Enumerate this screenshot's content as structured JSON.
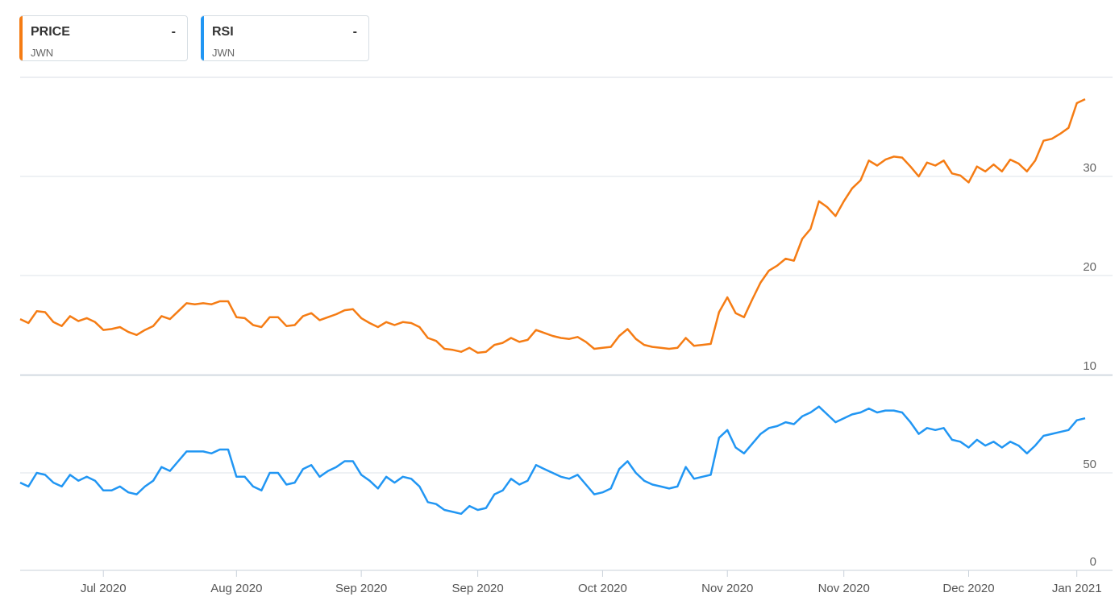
{
  "legend": [
    {
      "name": "PRICE",
      "value": "-",
      "symbol": "JWN",
      "color": "#f57c14"
    },
    {
      "name": "RSI",
      "value": "-",
      "symbol": "JWN",
      "color": "#2196f3"
    }
  ],
  "chart_data": [
    {
      "type": "line",
      "panel": "price",
      "title": "",
      "ylim": [
        10,
        40
      ],
      "y_ticks": [
        "10",
        "20",
        "30"
      ],
      "grid": true,
      "series": [
        {
          "name": "PRICE",
          "color": "#f57c14",
          "values": [
            15.6,
            15.2,
            16.4,
            16.3,
            15.3,
            14.9,
            15.9,
            15.4,
            15.7,
            15.3,
            14.5,
            14.6,
            14.8,
            14.3,
            14.0,
            14.5,
            14.9,
            15.9,
            15.6,
            16.4,
            17.2,
            17.1,
            17.2,
            17.1,
            17.4,
            17.4,
            15.8,
            15.7,
            15.0,
            14.8,
            15.8,
            15.8,
            14.9,
            15.0,
            15.9,
            16.2,
            15.5,
            15.8,
            16.1,
            16.5,
            16.6,
            15.7,
            15.2,
            14.8,
            15.3,
            15.0,
            15.3,
            15.2,
            14.8,
            13.7,
            13.4,
            12.6,
            12.5,
            12.3,
            12.7,
            12.2,
            12.3,
            13.0,
            13.2,
            13.7,
            13.3,
            13.5,
            14.5,
            14.2,
            13.9,
            13.7,
            13.6,
            13.8,
            13.3,
            12.6,
            12.7,
            12.8,
            13.9,
            14.6,
            13.6,
            13.0,
            12.8,
            12.7,
            12.6,
            12.7,
            13.7,
            12.9,
            13.0,
            13.1,
            16.3,
            17.8,
            16.2,
            15.8,
            17.6,
            19.3,
            20.5,
            21.0,
            21.7,
            21.5,
            23.7,
            24.7,
            27.5,
            26.9,
            26.0,
            27.5,
            28.8,
            29.6,
            31.6,
            31.1,
            31.7,
            32.0,
            31.9,
            31.0,
            30.0,
            31.4,
            31.1,
            31.6,
            30.3,
            30.1,
            29.4,
            31.0,
            30.5,
            31.2,
            30.5,
            31.7,
            31.3,
            30.5,
            31.6,
            33.6,
            33.8,
            34.3,
            34.9,
            37.4,
            37.8
          ]
        }
      ]
    },
    {
      "type": "line",
      "panel": "rsi",
      "title": "",
      "ylim": [
        0,
        100
      ],
      "y_ticks": [
        "0",
        "50"
      ],
      "grid": true,
      "series": [
        {
          "name": "RSI",
          "color": "#2196f3",
          "values": [
            45,
            43,
            50,
            49,
            45,
            43,
            49,
            46,
            48,
            46,
            41,
            41,
            43,
            40,
            39,
            43,
            46,
            53,
            51,
            56,
            61,
            61,
            61,
            60,
            62,
            62,
            48,
            48,
            43,
            41,
            50,
            50,
            44,
            45,
            52,
            54,
            48,
            51,
            53,
            56,
            56,
            49,
            46,
            42,
            48,
            45,
            48,
            47,
            43,
            35,
            34,
            31,
            30,
            29,
            33,
            31,
            32,
            39,
            41,
            47,
            44,
            46,
            54,
            52,
            50,
            48,
            47,
            49,
            44,
            39,
            40,
            42,
            52,
            56,
            50,
            46,
            44,
            43,
            42,
            43,
            53,
            47,
            48,
            49,
            68,
            72,
            63,
            60,
            65,
            70,
            73,
            74,
            76,
            75,
            79,
            81,
            84,
            80,
            76,
            78,
            80,
            81,
            83,
            81,
            82,
            82,
            81,
            76,
            70,
            73,
            72,
            73,
            67,
            66,
            63,
            67,
            64,
            66,
            63,
            66,
            64,
            60,
            64,
            69,
            70,
            71,
            72,
            77,
            78
          ]
        }
      ]
    }
  ],
  "x_ticks": [
    {
      "label": "Jul 2020",
      "index": 10
    },
    {
      "label": "Aug 2020",
      "index": 26
    },
    {
      "label": "Sep 2020",
      "index": 41
    },
    {
      "label": "Sep 2020",
      "index": 55
    },
    {
      "label": "Oct 2020",
      "index": 70
    },
    {
      "label": "Nov 2020",
      "index": 85
    },
    {
      "label": "Nov 2020",
      "index": 99
    },
    {
      "label": "Dec 2020",
      "index": 114
    },
    {
      "label": "Jan 2021",
      "index": 127
    }
  ]
}
